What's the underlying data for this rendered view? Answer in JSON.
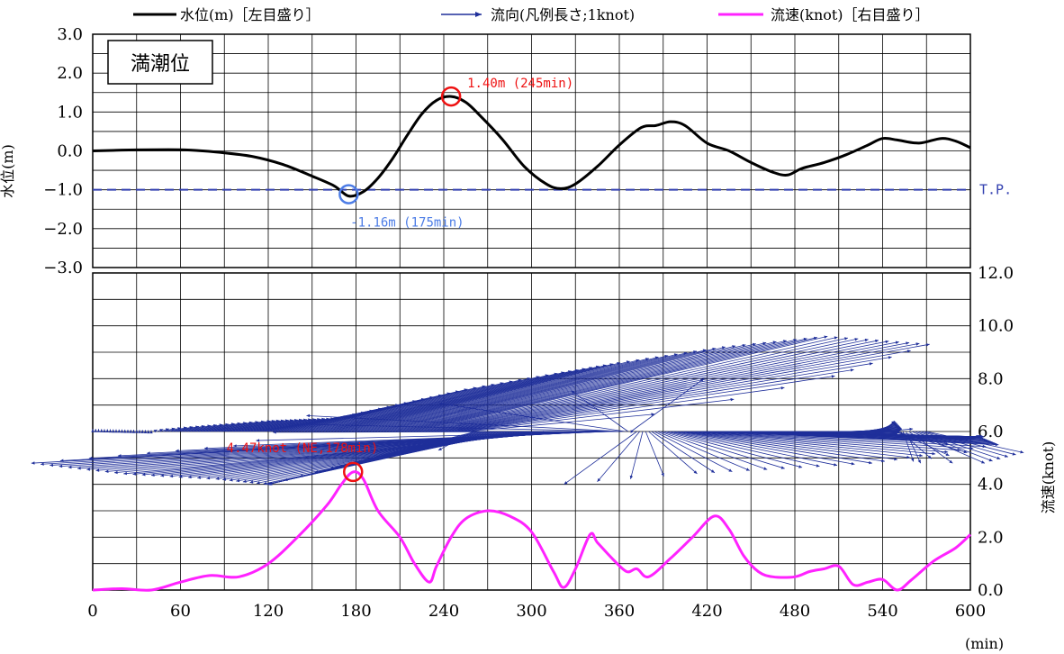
{
  "legend": {
    "water_level": "水位(m)［左目盛り］",
    "direction": "流向(凡例長さ;1knot)",
    "speed": "流速(knot)［右目盛り］"
  },
  "label_box": "満潮位",
  "tp_label": "T.P.",
  "colors": {
    "water_level": "#000000",
    "direction": "#1f2f9a",
    "speed": "#ff22ff",
    "tp_line": "#3340b0",
    "max_marker": "#ee1111",
    "min_marker": "#4d7de6",
    "grid": "#000000"
  },
  "chart_data": [
    {
      "type": "line",
      "ylabel": "水位(m)",
      "ylim": [
        -3.0,
        3.0
      ],
      "yticks": [
        "3.0",
        "2.0",
        "1.0",
        "0.0",
        "-1.0",
        "-2.0",
        "-3.0"
      ],
      "xlim": [
        0,
        600
      ],
      "grid": true,
      "series": [
        {
          "name": "水位(m)［左目盛り］",
          "x": [
            0,
            20,
            40,
            60,
            75,
            90,
            110,
            130,
            150,
            165,
            175,
            185,
            195,
            205,
            215,
            225,
            235,
            245,
            255,
            265,
            280,
            295,
            310,
            320,
            330,
            345,
            360,
            375,
            385,
            395,
            405,
            420,
            435,
            450,
            465,
            475,
            485,
            500,
            515,
            530,
            540,
            550,
            565,
            580,
            590,
            600
          ],
          "y": [
            0.0,
            0.02,
            0.03,
            0.03,
            0.0,
            -0.05,
            -0.15,
            -0.35,
            -0.65,
            -0.9,
            -1.16,
            -1.05,
            -0.7,
            -0.2,
            0.4,
            0.95,
            1.3,
            1.4,
            1.25,
            0.9,
            0.3,
            -0.4,
            -0.85,
            -0.97,
            -0.85,
            -0.4,
            0.15,
            0.6,
            0.65,
            0.75,
            0.65,
            0.2,
            0.0,
            -0.3,
            -0.55,
            -0.62,
            -0.45,
            -0.3,
            -0.1,
            0.15,
            0.32,
            0.28,
            0.2,
            0.32,
            0.25,
            0.08
          ]
        }
      ],
      "reference_line": {
        "name": "T.P.",
        "y": -1.0
      },
      "annotations": [
        {
          "text": "1.40m (245min)",
          "x": 245,
          "y": 1.4,
          "kind": "max"
        },
        {
          "text": "-1.16m (175min)",
          "x": 175,
          "y": -1.16,
          "kind": "min"
        }
      ]
    },
    {
      "type": "line",
      "ylabel": "流速(knot)",
      "ylim": [
        0.0,
        12.0
      ],
      "yticks": [
        "12.0",
        "10.0",
        "8.0",
        "6.0",
        "4.0",
        "2.0",
        "0.0"
      ],
      "xlabel": "(min)",
      "xlim": [
        0,
        600
      ],
      "xticks": [
        "0",
        "60",
        "120",
        "180",
        "240",
        "300",
        "360",
        "420",
        "480",
        "540",
        "600"
      ],
      "grid": true,
      "series": [
        {
          "name": "流速(knot)［右目盛り］",
          "x": [
            0,
            20,
            40,
            60,
            80,
            100,
            120,
            140,
            160,
            170,
            178,
            185,
            195,
            210,
            220,
            230,
            235,
            245,
            255,
            270,
            285,
            300,
            315,
            322,
            330,
            340,
            345,
            355,
            365,
            372,
            380,
            395,
            410,
            425,
            435,
            445,
            455,
            465,
            480,
            490,
            500,
            510,
            520,
            530,
            540,
            550,
            560,
            575,
            590,
            600
          ],
          "y": [
            0.0,
            0.05,
            0.0,
            0.3,
            0.55,
            0.5,
            1.0,
            2.0,
            3.2,
            4.0,
            4.47,
            4.2,
            3.0,
            2.0,
            1.0,
            0.3,
            0.9,
            2.0,
            2.7,
            3.0,
            2.8,
            2.2,
            0.7,
            0.1,
            0.8,
            2.1,
            1.8,
            1.2,
            0.7,
            0.8,
            0.5,
            1.2,
            2.0,
            2.8,
            2.3,
            1.3,
            0.7,
            0.5,
            0.5,
            0.7,
            0.8,
            0.9,
            0.2,
            0.3,
            0.4,
            0.0,
            0.4,
            1.1,
            1.6,
            2.1
          ]
        }
      ],
      "direction_arrows": {
        "name": "流向(凡例長さ;1knot)",
        "baseline_y": 6.0,
        "length_unit_knot": 1,
        "samples": [
          {
            "t": 0,
            "dx": 0.0,
            "dy": 0.1
          },
          {
            "t": 40,
            "dx": 0.0,
            "dy": 0.05
          },
          {
            "t": 80,
            "dx": 0.5,
            "dy": 0.4
          },
          {
            "t": 110,
            "dx": 0.7,
            "dy": 0.5
          },
          {
            "t": 140,
            "dx": 1.4,
            "dy": 1.6
          },
          {
            "t": 160,
            "dx": 1.9,
            "dy": 2.2
          },
          {
            "t": 178,
            "dx": 2.2,
            "dy": 2.6
          },
          {
            "t": 200,
            "dx": 2.8,
            "dy": 3.2
          },
          {
            "t": 220,
            "dx": 3.4,
            "dy": 3.6
          },
          {
            "t": 240,
            "dx": 4.0,
            "dy": 3.3
          },
          {
            "t": 250,
            "dx": 3.1,
            "dy": 2.1
          },
          {
            "t": 255,
            "dx": 2.0,
            "dy": 1.0
          },
          {
            "t": 262,
            "dx": -1.2,
            "dy": -1.4
          },
          {
            "t": 270,
            "dx": -1.8,
            "dy": -2.0
          },
          {
            "t": 285,
            "dx": -2.0,
            "dy": -2.0
          },
          {
            "t": 300,
            "dx": -2.6,
            "dy": -1.8
          },
          {
            "t": 320,
            "dx": -3.6,
            "dy": -1.6
          },
          {
            "t": 340,
            "dx": -4.6,
            "dy": -1.2
          },
          {
            "t": 355,
            "dx": -3.0,
            "dy": -0.5
          },
          {
            "t": 362,
            "dx": -2.6,
            "dy": 0.6
          },
          {
            "t": 368,
            "dx": 0.6,
            "dy": 2.0
          },
          {
            "t": 372,
            "dx": -0.6,
            "dy": -2.0
          },
          {
            "t": 380,
            "dx": 0.4,
            "dy": -1.6
          },
          {
            "t": 400,
            "dx": 1.6,
            "dy": -1.2
          },
          {
            "t": 420,
            "dx": 2.4,
            "dy": -0.5
          },
          {
            "t": 440,
            "dx": 2.0,
            "dy": -0.2
          },
          {
            "t": 460,
            "dx": 1.8,
            "dy": -0.2
          },
          {
            "t": 480,
            "dx": 1.4,
            "dy": -0.3
          },
          {
            "t": 500,
            "dx": 0.6,
            "dy": -0.1
          },
          {
            "t": 520,
            "dx": 0.4,
            "dy": 0.1
          },
          {
            "t": 540,
            "dx": 0.1,
            "dy": 0.4
          },
          {
            "t": 548,
            "dx": 0.6,
            "dy": -0.8
          },
          {
            "t": 555,
            "dx": 0.0,
            "dy": -1.2
          },
          {
            "t": 560,
            "dx": 0.6,
            "dy": -1.2
          },
          {
            "t": 570,
            "dx": 0.8,
            "dy": -0.8
          }
        ]
      },
      "annotations": [
        {
          "text": "4.47knot (NE,178min)",
          "x": 178,
          "y": 4.47,
          "kind": "max"
        }
      ]
    }
  ]
}
